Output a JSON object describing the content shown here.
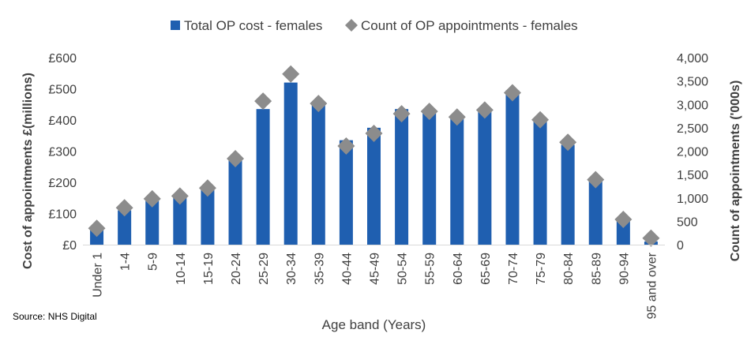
{
  "chart_data": {
    "type": "bar",
    "categories": [
      "Under 1",
      "1-4",
      "5-9",
      "10-14",
      "15-19",
      "20-24",
      "25-29",
      "30-34",
      "35-39",
      "40-44",
      "45-49",
      "50-54",
      "55-59",
      "60-64",
      "65-69",
      "70-74",
      "75-79",
      "80-84",
      "85-89",
      "90-94",
      "95 and over"
    ],
    "series": [
      {
        "name": "Total OP cost - females",
        "type": "bar",
        "axis": "left",
        "color": "#1F5FB0",
        "values": [
          55,
          110,
          140,
          160,
          175,
          275,
          435,
          520,
          455,
          335,
          375,
          435,
          430,
          415,
          430,
          495,
          400,
          320,
          205,
          80,
          10
        ]
      },
      {
        "name": "Count of OP appointments - females",
        "type": "scatter",
        "marker": "diamond",
        "axis": "right",
        "color": "#8C8C8C",
        "values": [
          350,
          790,
          980,
          1040,
          1210,
          1840,
          3070,
          3650,
          3020,
          2110,
          2380,
          2800,
          2850,
          2730,
          2880,
          3250,
          2670,
          2190,
          1390,
          540,
          140
        ]
      }
    ],
    "y_left": {
      "label": "Cost of appointments £(millions)",
      "min": 0,
      "max": 600,
      "ticks": [
        0,
        100,
        200,
        300,
        400,
        500,
        600
      ],
      "tick_labels": [
        "£0",
        "£100",
        "£200",
        "£300",
        "£400",
        "£500",
        "£600"
      ]
    },
    "y_right": {
      "label": "Count of appointments ('000s)",
      "min": 0,
      "max": 4000,
      "ticks": [
        0,
        500,
        1000,
        1500,
        2000,
        2500,
        3000,
        3500,
        4000
      ],
      "tick_labels": [
        "0",
        "500",
        "1,000",
        "1,500",
        "2,000",
        "2,500",
        "3,000",
        "3,500",
        "4,000"
      ]
    },
    "xlabel": "Age band (Years)",
    "legend_position": "top",
    "grid": false
  },
  "source": "Source: NHS Digital"
}
